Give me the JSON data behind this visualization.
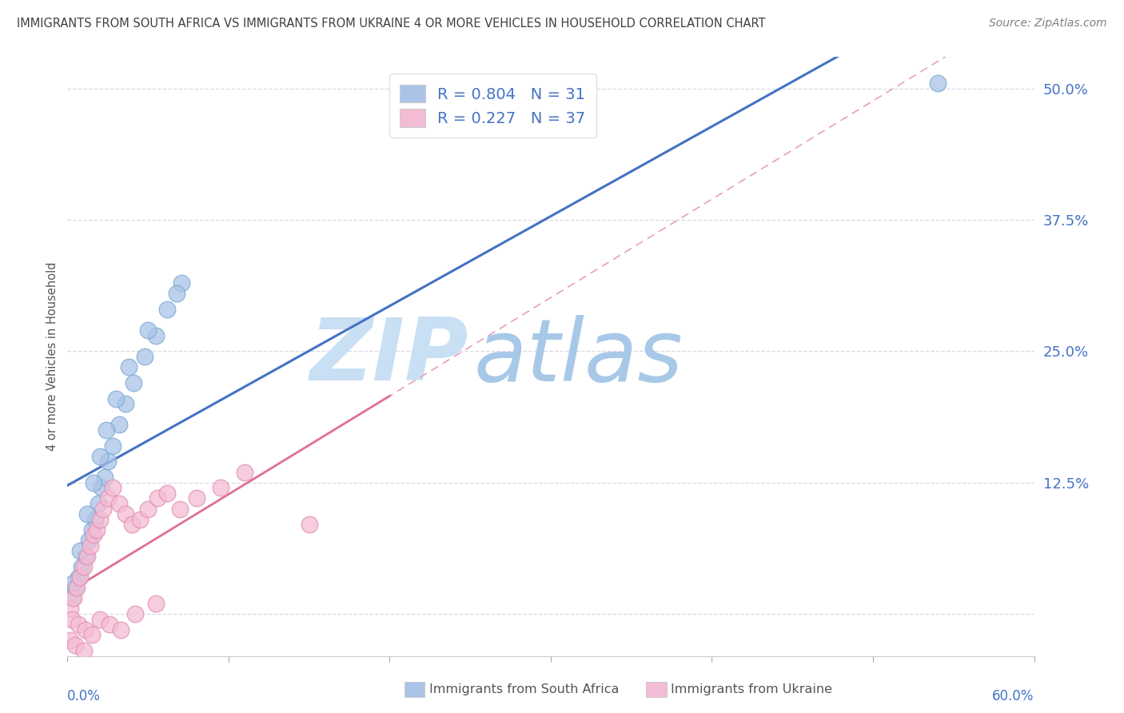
{
  "title": "IMMIGRANTS FROM SOUTH AFRICA VS IMMIGRANTS FROM UKRAINE 4 OR MORE VEHICLES IN HOUSEHOLD CORRELATION CHART",
  "source": "Source: ZipAtlas.com",
  "ylabel": "4 or more Vehicles in Household",
  "xlim": [
    0.0,
    60.0
  ],
  "ylim": [
    -4.0,
    53.0
  ],
  "yticks": [
    0.0,
    12.5,
    25.0,
    37.5,
    50.0
  ],
  "ytick_labels": [
    "",
    "12.5%",
    "25.0%",
    "37.5%",
    "50.0%"
  ],
  "xticks": [
    0.0,
    10.0,
    20.0,
    30.0,
    40.0,
    50.0,
    60.0
  ],
  "blue_R": 0.804,
  "blue_N": 31,
  "pink_R": 0.227,
  "pink_N": 37,
  "blue_color": "#aac4e8",
  "blue_edge_color": "#7aaad4",
  "blue_line_color": "#4472c4",
  "pink_color": "#f4bcd4",
  "pink_edge_color": "#e090b0",
  "pink_line_color": "#e07090",
  "pink_dash_color": "#e8a0b8",
  "legend_text_color": "#4472c4",
  "watermark_zip_color": "#c8dff4",
  "watermark_atlas_color": "#a8c8e8",
  "background_color": "#ffffff",
  "grid_color": "#d8d8e8",
  "title_color": "#404040",
  "source_color": "#808080",
  "axis_label_color": "#555555",
  "blue_x": [
    0.3,
    0.5,
    0.7,
    0.9,
    1.1,
    1.3,
    1.5,
    1.7,
    1.9,
    2.1,
    2.3,
    2.5,
    2.8,
    3.2,
    3.6,
    4.1,
    4.8,
    5.5,
    6.2,
    7.1,
    0.4,
    0.8,
    1.2,
    1.6,
    2.0,
    2.4,
    3.0,
    3.8,
    5.0,
    6.8,
    54.0
  ],
  "blue_y": [
    1.5,
    2.5,
    3.5,
    4.5,
    5.5,
    7.0,
    8.0,
    9.0,
    10.5,
    12.0,
    13.0,
    14.5,
    16.0,
    18.0,
    20.0,
    22.0,
    24.5,
    26.5,
    29.0,
    31.5,
    3.0,
    6.0,
    9.5,
    12.5,
    15.0,
    17.5,
    20.5,
    23.5,
    27.0,
    30.5,
    50.5
  ],
  "pink_x": [
    0.2,
    0.4,
    0.6,
    0.8,
    1.0,
    1.2,
    1.4,
    1.6,
    1.8,
    2.0,
    2.2,
    2.5,
    2.8,
    3.2,
    3.6,
    4.0,
    4.5,
    5.0,
    5.6,
    6.2,
    7.0,
    8.0,
    9.5,
    11.0,
    0.3,
    0.7,
    1.1,
    1.5,
    2.0,
    2.6,
    3.3,
    4.2,
    5.5,
    0.2,
    0.5,
    1.0,
    15.0
  ],
  "pink_y": [
    0.5,
    1.5,
    2.5,
    3.5,
    4.5,
    5.5,
    6.5,
    7.5,
    8.0,
    9.0,
    10.0,
    11.0,
    12.0,
    10.5,
    9.5,
    8.5,
    9.0,
    10.0,
    11.0,
    11.5,
    10.0,
    11.0,
    12.0,
    13.5,
    -0.5,
    -1.0,
    -1.5,
    -2.0,
    -0.5,
    -1.0,
    -1.5,
    0.0,
    1.0,
    -2.5,
    -3.0,
    -3.5,
    8.5
  ],
  "legend_blue_label_r": "R = 0.804",
  "legend_blue_label_n": "N = 31",
  "legend_pink_label_r": "R = 0.227",
  "legend_pink_label_n": "N = 37"
}
